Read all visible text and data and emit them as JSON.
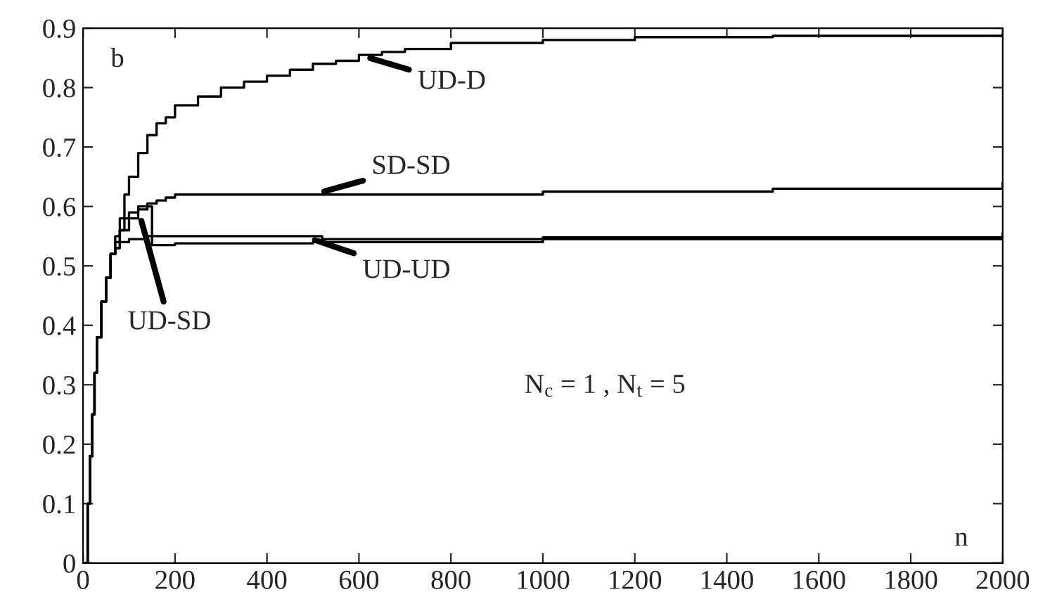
{
  "chart_data": {
    "type": "step",
    "xlabel": "n",
    "annotations": [
      "b",
      "N$_{c}$ = 1 , N$_{t}$ = 5"
    ],
    "xlim": [
      0,
      2000
    ],
    "xticks": [
      0,
      200,
      400,
      600,
      800,
      1000,
      1200,
      1400,
      1600,
      1800,
      2000
    ],
    "ylim": [
      0,
      0.9
    ],
    "yticks": [
      0,
      0.1,
      0.2,
      0.3,
      0.4,
      0.5,
      0.6,
      0.7,
      0.8,
      0.9
    ],
    "grid": false,
    "series": [
      {
        "name": "UD-D",
        "color": "#000000",
        "x": [
          0,
          5,
          10,
          15,
          20,
          25,
          30,
          40,
          50,
          60,
          70,
          80,
          90,
          100,
          120,
          140,
          160,
          180,
          200,
          250,
          300,
          350,
          400,
          450,
          500,
          550,
          600,
          650,
          700,
          800,
          1000,
          1200,
          1500,
          2000
        ],
        "values": [
          0,
          0,
          0.1,
          0.18,
          0.25,
          0.32,
          0.38,
          0.44,
          0.48,
          0.52,
          0.55,
          0.58,
          0.62,
          0.65,
          0.69,
          0.72,
          0.74,
          0.75,
          0.77,
          0.785,
          0.8,
          0.81,
          0.82,
          0.83,
          0.84,
          0.845,
          0.855,
          0.86,
          0.865,
          0.875,
          0.88,
          0.885,
          0.887,
          0.89
        ]
      },
      {
        "name": "SD-SD",
        "color": "#000000",
        "x": [
          0,
          5,
          10,
          15,
          20,
          25,
          30,
          40,
          50,
          60,
          70,
          80,
          100,
          120,
          140,
          160,
          180,
          200,
          300,
          500,
          1000,
          1500,
          2000
        ],
        "values": [
          0,
          0,
          0.1,
          0.18,
          0.25,
          0.32,
          0.38,
          0.44,
          0.48,
          0.52,
          0.54,
          0.56,
          0.58,
          0.6,
          0.605,
          0.61,
          0.615,
          0.62,
          0.62,
          0.62,
          0.625,
          0.63,
          0.64
        ]
      },
      {
        "name": "UD-UD",
        "color": "#000000",
        "x": [
          0,
          5,
          10,
          15,
          20,
          25,
          30,
          40,
          50,
          60,
          70,
          80,
          100,
          140,
          200,
          300,
          480,
          520,
          1000,
          2000
        ],
        "values": [
          0,
          0,
          0.1,
          0.18,
          0.25,
          0.32,
          0.38,
          0.44,
          0.48,
          0.52,
          0.53,
          0.54,
          0.545,
          0.55,
          0.55,
          0.55,
          0.55,
          0.545,
          0.548,
          0.555
        ]
      },
      {
        "name": "UD-SD",
        "color": "#000000",
        "x": [
          0,
          5,
          10,
          15,
          20,
          25,
          30,
          40,
          50,
          60,
          70,
          80,
          90,
          100,
          120,
          140,
          150,
          200,
          500,
          1000,
          2000
        ],
        "values": [
          0,
          0,
          0.1,
          0.18,
          0.25,
          0.32,
          0.38,
          0.44,
          0.48,
          0.52,
          0.53,
          0.56,
          0.58,
          0.59,
          0.595,
          0.6,
          0.535,
          0.538,
          0.54,
          0.545,
          0.55
        ]
      }
    ]
  }
}
